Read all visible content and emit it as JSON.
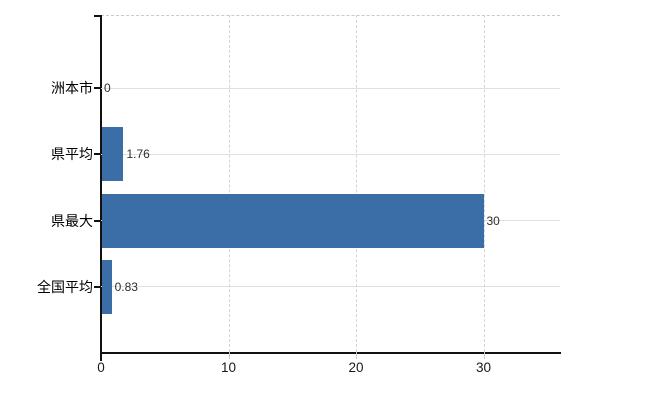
{
  "chart_data": {
    "type": "bar",
    "orientation": "horizontal",
    "title": "",
    "xlabel": "",
    "ylabel": "",
    "categories": [
      "洲本市",
      "県平均",
      "県最大",
      "全国平均"
    ],
    "values": [
      0,
      1.76,
      30,
      0.83
    ],
    "value_labels": [
      "0",
      "1.76",
      "30",
      "0.83"
    ],
    "xlim": [
      0,
      36
    ],
    "xticks": [
      0,
      10,
      20,
      30
    ],
    "xtick_labels": [
      "0",
      "10",
      "20",
      "30"
    ],
    "grid": true,
    "legend": false,
    "colors": {
      "bar": "#3b6da7",
      "axis": "#111111",
      "h_gridline": "#dde2de",
      "v_gridline": "#d3d3db",
      "top_border": "#c9c9cf",
      "category_label": "#000000",
      "value_label": "#2e2e2e",
      "tick_label": "#1a1a1a",
      "minor_tick": "#c8c8c8",
      "background": "#ffffff"
    }
  }
}
